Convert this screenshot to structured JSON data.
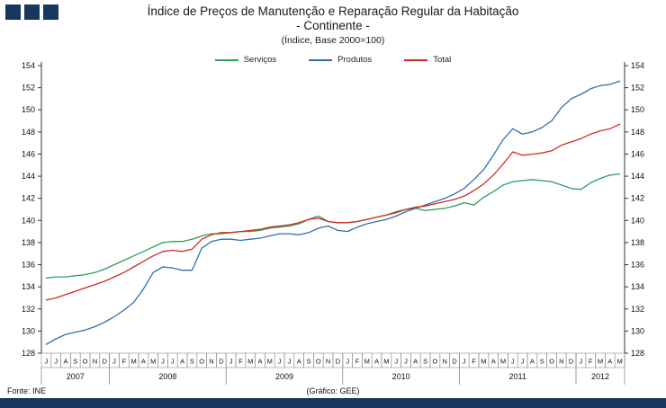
{
  "chart_data": {
    "type": "line",
    "title": "Índice de Preços de Manutenção e Reparação Regular da Habitação",
    "subtitle": "- Continente -",
    "note": "(Índice,  Base 2000=100)",
    "ylim": [
      128,
      154
    ],
    "ytick_step": 2,
    "legend_position": "top-center",
    "grid": false,
    "x_months": [
      "J",
      "J",
      "A",
      "S",
      "O",
      "N",
      "D",
      "J",
      "F",
      "M",
      "A",
      "M",
      "J",
      "J",
      "A",
      "S",
      "O",
      "N",
      "D",
      "J",
      "F",
      "M",
      "A",
      "M",
      "J",
      "J",
      "A",
      "S",
      "O",
      "N",
      "D",
      "J",
      "F",
      "M",
      "A",
      "M",
      "J",
      "J",
      "A",
      "S",
      "O",
      "N",
      "D",
      "J",
      "F",
      "M",
      "A",
      "M",
      "J",
      "J",
      "A",
      "S",
      "O",
      "N",
      "D",
      "J",
      "F",
      "M",
      "A",
      "M"
    ],
    "years": [
      {
        "label": "2007",
        "months": 7
      },
      {
        "label": "2008",
        "months": 12
      },
      {
        "label": "2009",
        "months": 12
      },
      {
        "label": "2010",
        "months": 12
      },
      {
        "label": "2011",
        "months": 12
      },
      {
        "label": "2012",
        "months": 5
      }
    ],
    "series": [
      {
        "name": "Serviços",
        "color": "#2e9e5b",
        "values": [
          134.8,
          134.9,
          134.9,
          135.0,
          135.1,
          135.3,
          135.6,
          136.0,
          136.4,
          136.8,
          137.2,
          137.6,
          138.0,
          138.1,
          138.1,
          138.3,
          138.6,
          138.8,
          138.8,
          138.9,
          139.0,
          139.0,
          139.1,
          139.3,
          139.4,
          139.5,
          139.7,
          140.1,
          140.4,
          139.9,
          139.8,
          139.8,
          139.9,
          140.1,
          140.3,
          140.5,
          140.8,
          141.0,
          141.1,
          140.9,
          141.0,
          141.1,
          141.3,
          141.6,
          141.4,
          142.1,
          142.6,
          143.2,
          143.5,
          143.6,
          143.7,
          143.6,
          143.5,
          143.2,
          142.9,
          142.8,
          143.4,
          143.8,
          144.1,
          144.2
        ]
      },
      {
        "name": "Produtos",
        "color": "#2f6eb4",
        "values": [
          128.8,
          129.3,
          129.7,
          129.9,
          130.1,
          130.4,
          130.8,
          131.3,
          131.9,
          132.6,
          133.8,
          135.3,
          135.8,
          135.7,
          135.5,
          135.5,
          137.5,
          138.1,
          138.3,
          138.3,
          138.2,
          138.3,
          138.4,
          138.6,
          138.8,
          138.8,
          138.7,
          138.9,
          139.3,
          139.5,
          139.1,
          139.0,
          139.4,
          139.7,
          139.9,
          140.1,
          140.4,
          140.8,
          141.1,
          141.4,
          141.7,
          142.0,
          142.4,
          142.9,
          143.7,
          144.6,
          145.9,
          147.3,
          148.3,
          147.8,
          148.0,
          148.4,
          149.0,
          150.2,
          151.0,
          151.4,
          151.9,
          152.2,
          152.3,
          152.6
        ]
      },
      {
        "name": "Total",
        "color": "#d42a20",
        "values": [
          132.8,
          133.0,
          133.3,
          133.6,
          133.9,
          134.2,
          134.5,
          134.9,
          135.3,
          135.8,
          136.3,
          136.8,
          137.2,
          137.3,
          137.2,
          137.4,
          138.3,
          138.7,
          138.9,
          138.9,
          139.0,
          139.1,
          139.2,
          139.4,
          139.5,
          139.6,
          139.8,
          140.1,
          140.2,
          139.9,
          139.8,
          139.8,
          139.9,
          140.1,
          140.3,
          140.5,
          140.7,
          141.0,
          141.2,
          141.3,
          141.5,
          141.7,
          141.9,
          142.2,
          142.7,
          143.3,
          144.1,
          145.1,
          146.2,
          145.9,
          146.0,
          146.1,
          146.3,
          146.8,
          147.1,
          147.4,
          147.8,
          148.1,
          148.3,
          148.7
        ]
      }
    ]
  },
  "footer": {
    "source": "Fonte: INE",
    "credit": "(Gráfico:  GEE)"
  },
  "colors": {
    "navy": "#17375e",
    "axis": "#333333",
    "box_border": "#8a8a8a",
    "text": "#111111"
  }
}
